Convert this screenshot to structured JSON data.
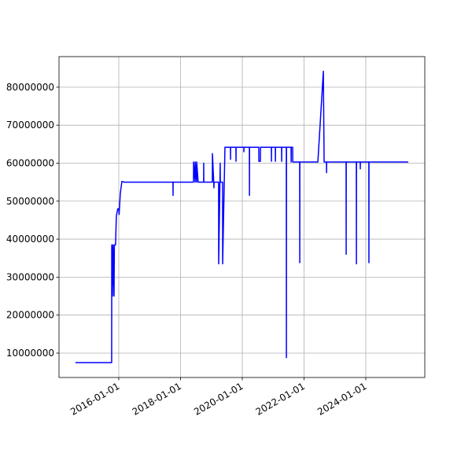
{
  "chart_data": {
    "type": "line",
    "color": "#0000ff",
    "grid": true,
    "xlim": [
      "2014-01-24",
      "2025-11-29"
    ],
    "xticks": [
      "2016-01-01",
      "2018-01-01",
      "2020-01-01",
      "2022-01-01",
      "2024-01-01"
    ],
    "ylim": [
      3580000,
      88050000
    ],
    "yticks": [
      10000000,
      20000000,
      30000000,
      40000000,
      50000000,
      60000000,
      70000000,
      80000000
    ],
    "x": [
      "2014-08-07",
      "2015-10-09",
      "2015-10-10",
      "2015-10-18",
      "2015-10-25",
      "2015-11-06",
      "2015-11-10",
      "2015-11-24",
      "2015-12-03",
      "2015-12-20",
      "2016-01-01",
      "2016-01-05",
      "2016-01-19",
      "2016-02-07",
      "2016-03-06",
      "2017-10-03",
      "2017-10-04",
      "2017-10-05",
      "2018-06-03",
      "2018-06-04",
      "2018-06-22",
      "2018-06-23",
      "2018-07-10",
      "2018-07-11",
      "2018-07-28",
      "2018-10-01",
      "2018-10-02",
      "2018-10-03",
      "2019-01-12",
      "2019-01-13",
      "2019-01-31",
      "2019-02-01",
      "2019-03-27",
      "2019-03-28",
      "2019-04-15",
      "2019-04-16",
      "2019-05-13",
      "2019-05-14",
      "2019-06-10",
      "2019-08-14",
      "2019-08-15",
      "2019-08-16",
      "2019-10-18",
      "2019-10-19",
      "2019-10-20",
      "2020-01-19",
      "2020-01-20",
      "2020-01-21",
      "2020-03-25",
      "2020-03-26",
      "2020-03-27",
      "2020-07-14",
      "2020-07-15",
      "2020-08-02",
      "2020-08-03",
      "2020-12-10",
      "2020-12-11",
      "2020-12-12",
      "2021-01-26",
      "2021-01-27",
      "2021-01-28",
      "2021-04-10",
      "2021-04-11",
      "2021-04-12",
      "2021-06-05",
      "2021-06-06",
      "2021-06-07",
      "2021-07-31",
      "2021-08-01",
      "2021-08-02",
      "2021-08-19",
      "2021-08-20",
      "2021-11-10",
      "2021-11-11",
      "2021-11-12",
      "2022-06-13",
      "2022-08-17",
      "2022-08-26",
      "2022-09-23",
      "2022-09-24",
      "2022-09-25",
      "2023-05-13",
      "2023-05-14",
      "2023-05-15",
      "2023-09-11",
      "2023-09-12",
      "2023-09-13",
      "2023-10-27",
      "2023-10-28",
      "2023-10-29",
      "2024-02-06",
      "2024-02-07",
      "2024-02-08",
      "2025-05-18"
    ],
    "values": [
      7500000,
      7500000,
      38500000,
      25000000,
      38500000,
      25000000,
      38500000,
      38500000,
      46000000,
      48000000,
      48000000,
      46500000,
      52000000,
      55200000,
      55000000,
      55000000,
      51500000,
      55000000,
      55000000,
      60300000,
      55000000,
      60300000,
      55000000,
      60300000,
      55000000,
      55000000,
      60000000,
      55000000,
      55000000,
      62500000,
      53500000,
      55000000,
      55000000,
      33500000,
      60000000,
      55000000,
      55000000,
      33500000,
      64200000,
      64200000,
      61000000,
      64200000,
      64200000,
      60500000,
      64200000,
      64200000,
      63000000,
      64200000,
      64200000,
      51500000,
      64200000,
      64200000,
      60500000,
      60500000,
      64200000,
      64200000,
      60500000,
      64200000,
      64200000,
      60500000,
      64200000,
      64200000,
      60500000,
      64200000,
      64200000,
      8800000,
      64200000,
      64200000,
      60300000,
      64200000,
      64200000,
      60300000,
      60300000,
      33800000,
      60300000,
      60300000,
      84200000,
      60300000,
      60300000,
      57500000,
      60300000,
      60300000,
      36000000,
      60300000,
      60300000,
      33500000,
      60300000,
      60300000,
      58500000,
      60300000,
      60300000,
      33800000,
      60300000,
      60300000
    ]
  }
}
